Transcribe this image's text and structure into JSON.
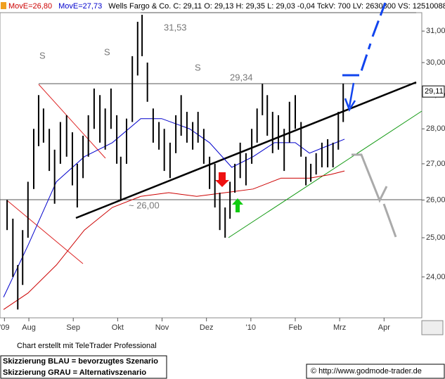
{
  "chart_data": {
    "type": "ohlc",
    "title": "Wells Fargo & Co. C: 29,11 O: 29,13 H: 29,35 L: 29,03 -0,04 TckV: 700 LV: 2630800 VS: 12510088",
    "color": "#000000",
    "x": [
      0.51,
      0.64,
      0.75,
      0.86,
      0.98,
      1.11,
      1.22,
      1.33,
      1.46,
      1.58,
      1.71,
      1.85,
      1.98,
      2.09,
      2.22,
      2.34,
      2.47,
      2.6,
      2.72,
      2.85,
      2.98,
      3.07,
      3.2,
      3.33,
      3.45,
      3.55,
      3.67,
      3.8,
      3.93,
      4.05,
      4.18,
      4.31,
      4.43,
      4.56,
      4.69,
      4.81,
      4.94,
      5.07,
      5.19,
      5.3,
      5.42,
      5.53,
      5.64,
      5.76,
      5.89,
      6.02,
      6.14,
      6.26,
      6.37,
      6.49,
      6.62,
      6.75,
      6.87,
      7.0,
      7.13,
      7.24,
      7.35,
      7.47,
      7.6,
      7.73,
      7.85,
      7.97,
      8.08
    ],
    "high": [
      26.0,
      25.5,
      24.3,
      25.2,
      26.5,
      28.0,
      29.0,
      28.6,
      28.0,
      27.4,
      28.2,
      28.4,
      27.9,
      27.0,
      27.8,
      28.4,
      29.2,
      29.0,
      28.6,
      29.2,
      28.4,
      27.2,
      28.3,
      30.2,
      31.3,
      31.53,
      30.0,
      28.6,
      28.2,
      28.0,
      27.6,
      28.4,
      29.0,
      28.5,
      28.2,
      28.5,
      28.0,
      27.2,
      27.0,
      26.2,
      25.8,
      26.5,
      27.0,
      27.6,
      27.3,
      28.0,
      28.6,
      29.34,
      29.0,
      28.5,
      28.4,
      28.0,
      28.8,
      29.0,
      28.2,
      27.2,
      27.0,
      27.3,
      27.6,
      27.7,
      27.6,
      28.5,
      29.35
    ],
    "low": [
      25.2,
      24.0,
      23.2,
      23.8,
      25.0,
      26.3,
      27.5,
      27.6,
      26.8,
      25.9,
      27.0,
      27.2,
      26.4,
      25.8,
      26.6,
      27.2,
      28.0,
      27.6,
      27.4,
      28.0,
      27.0,
      26.0,
      27.0,
      28.2,
      29.6,
      30.2,
      28.8,
      27.6,
      27.4,
      26.8,
      26.6,
      27.3,
      27.8,
      27.6,
      27.4,
      27.6,
      27.0,
      26.3,
      25.8,
      25.2,
      25.0,
      25.5,
      26.2,
      26.6,
      26.4,
      27.0,
      27.6,
      28.4,
      27.8,
      27.3,
      27.4,
      26.8,
      27.6,
      28.0,
      27.2,
      26.4,
      26.5,
      26.7,
      26.9,
      26.9,
      26.9,
      27.4,
      28.2
    ],
    "overlays": [
      {
        "name": "MovE=26,80",
        "color": "#cc0000",
        "x": [
          0.43,
          0.98,
          1.62,
          2.25,
          2.88,
          3.52,
          4.15,
          4.78,
          5.42,
          6.05,
          6.68,
          7.32,
          7.79,
          8.11
        ],
        "values": [
          23.2,
          23.6,
          24.3,
          25.2,
          25.8,
          26.1,
          26.2,
          26.1,
          26.2,
          26.3,
          26.6,
          26.6,
          26.7,
          26.8
        ]
      },
      {
        "name": "MovE=27,73",
        "color": "#0000cc",
        "x": [
          0.43,
          0.98,
          1.62,
          2.25,
          2.88,
          3.52,
          3.99,
          4.62,
          5.07,
          5.57,
          6.05,
          6.53,
          7.0,
          7.32,
          7.71,
          8.11
        ],
        "values": [
          23.5,
          24.8,
          26.5,
          27.2,
          27.6,
          28.3,
          28.3,
          28.0,
          27.6,
          26.9,
          27.2,
          27.6,
          27.6,
          27.3,
          27.5,
          27.7
        ]
      }
    ],
    "xlim": [
      0.35,
      9.85
    ],
    "xticks": [
      {
        "value": 0.45,
        "label": "'09"
      },
      {
        "value": 1,
        "label": "Aug"
      },
      {
        "value": 2,
        "label": "Sep"
      },
      {
        "value": 3,
        "label": "Okt"
      },
      {
        "value": 4,
        "label": "Nov"
      },
      {
        "value": 5,
        "label": "Dez"
      },
      {
        "value": 6,
        "label": "'10"
      },
      {
        "value": 7,
        "label": "Feb"
      },
      {
        "value": 8,
        "label": "Mrz"
      },
      {
        "value": 9,
        "label": "Apr"
      }
    ],
    "ylim": [
      23.0,
      31.6
    ],
    "log": true,
    "yticks": [
      {
        "value": 24,
        "label": "24,00"
      },
      {
        "value": 25,
        "label": "25,00"
      },
      {
        "value": 26,
        "label": "26,00"
      },
      {
        "value": 27,
        "label": "27,00"
      },
      {
        "value": 28,
        "label": "28,00"
      },
      {
        "value": 29,
        "label": "29,00"
      },
      {
        "value": 30,
        "label": "30,00"
      },
      {
        "value": 31,
        "label": "31,00"
      }
    ],
    "last_label": "29,11",
    "last_value": 29.11,
    "annotations": [
      "31,53",
      "29,34",
      "~ 26,00",
      "S",
      "S",
      "S"
    ]
  },
  "footer": {
    "credit": "Chart erstellt mit TeleTrader Professional",
    "note_blue": "Skizzierung BLAU = bevorzugtes Szenario",
    "note_gray": "Skizzierung GRAU = Alternativszenario",
    "copyright": "© http://www.godmode-trader.de"
  }
}
